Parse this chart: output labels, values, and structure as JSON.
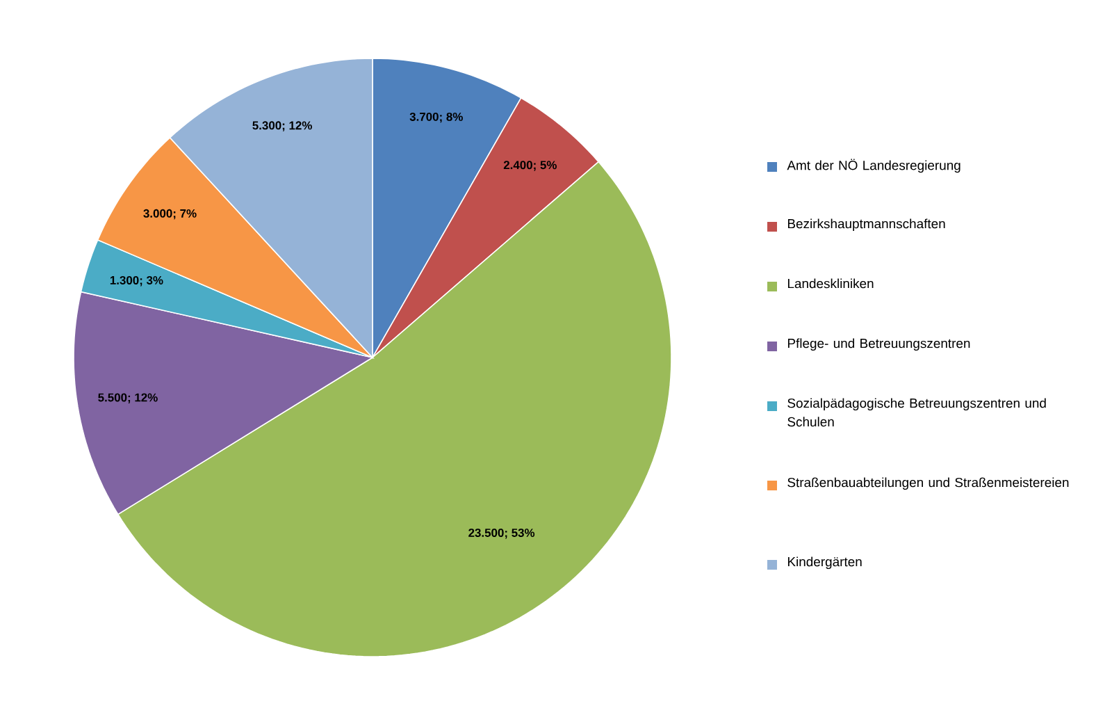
{
  "chart_data": {
    "type": "pie",
    "categories": [
      "Amt der NÖ Landesregierung",
      "Bezirkshauptmannschaften",
      "Landeskliniken",
      "Pflege- und Betreuungszentren",
      "Sozialpädagogische Betreuungszentren und Schulen",
      "Straßenbauabteilungen und Straßenmeistereien",
      "Kindergärten"
    ],
    "values": [
      3700,
      2400,
      23500,
      5500,
      1300,
      3000,
      5300
    ],
    "colors": [
      "#4f81bd",
      "#c0504d",
      "#9bbb59",
      "#8064a2",
      "#4bacc6",
      "#f79646",
      "#95b3d7"
    ],
    "value_labels": [
      "3.700; 8%",
      "2.400; 5%",
      "23.500; 53%",
      "5.500; 12%",
      "1.300; 3%",
      "3.000; 7%",
      "5.300; 12%"
    ],
    "legend": "right"
  }
}
